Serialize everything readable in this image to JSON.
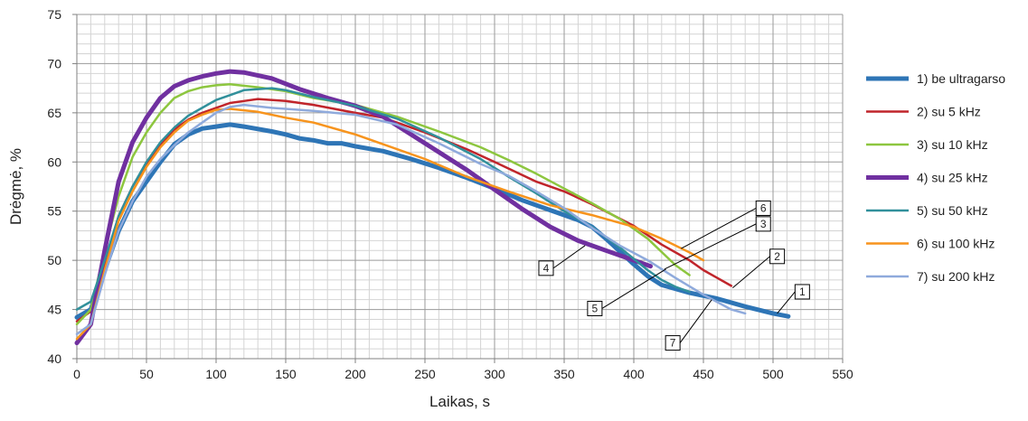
{
  "chart_data": {
    "type": "line",
    "title": "",
    "xlabel": "Laikas, s",
    "ylabel": "Drėgmė, %",
    "xlim": [
      0,
      550
    ],
    "ylim": [
      40,
      75
    ],
    "x_ticks": [
      0,
      50,
      100,
      150,
      200,
      250,
      300,
      350,
      400,
      450,
      500,
      550
    ],
    "y_ticks": [
      40,
      45,
      50,
      55,
      60,
      65,
      70,
      75
    ],
    "x_minor_step": 10,
    "y_minor_step": 1,
    "grid": true,
    "legend_position": "right",
    "series": [
      {
        "name": "1) be ultragarso",
        "color": "#2e75b6",
        "width": 5,
        "tag": "1",
        "points": [
          [
            0,
            44.2
          ],
          [
            10,
            45
          ],
          [
            20,
            49
          ],
          [
            30,
            53
          ],
          [
            40,
            56
          ],
          [
            50,
            58
          ],
          [
            60,
            60
          ],
          [
            70,
            61.8
          ],
          [
            80,
            62.8
          ],
          [
            90,
            63.4
          ],
          [
            100,
            63.6
          ],
          [
            110,
            63.8
          ],
          [
            120,
            63.6
          ],
          [
            140,
            63.1
          ],
          [
            150,
            62.8
          ],
          [
            160,
            62.4
          ],
          [
            170,
            62.2
          ],
          [
            180,
            61.9
          ],
          [
            190,
            61.9
          ],
          [
            200,
            61.6
          ],
          [
            220,
            61.1
          ],
          [
            240,
            60.3
          ],
          [
            260,
            59.4
          ],
          [
            280,
            58.4
          ],
          [
            300,
            57.3
          ],
          [
            320,
            56.1
          ],
          [
            340,
            55.1
          ],
          [
            360,
            54.1
          ],
          [
            370,
            53.4
          ],
          [
            380,
            52.2
          ],
          [
            390,
            50.9
          ],
          [
            400,
            49.6
          ],
          [
            410,
            48.4
          ],
          [
            420,
            47.5
          ],
          [
            440,
            46.7
          ],
          [
            460,
            46.1
          ],
          [
            480,
            45.3
          ],
          [
            500,
            44.6
          ],
          [
            511,
            44.3
          ]
        ]
      },
      {
        "name": "2) su 5 kHz",
        "color": "#c0252b",
        "width": 2.5,
        "tag": "2",
        "points": [
          [
            0,
            43.8
          ],
          [
            10,
            44.8
          ],
          [
            20,
            49.5
          ],
          [
            30,
            54.5
          ],
          [
            40,
            57.5
          ],
          [
            50,
            59.8
          ],
          [
            60,
            61.8
          ],
          [
            70,
            63.3
          ],
          [
            80,
            64.3
          ],
          [
            90,
            65
          ],
          [
            100,
            65.5
          ],
          [
            110,
            66
          ],
          [
            120,
            66.2
          ],
          [
            130,
            66.4
          ],
          [
            150,
            66.2
          ],
          [
            170,
            65.8
          ],
          [
            200,
            65
          ],
          [
            220,
            64.5
          ],
          [
            250,
            63
          ],
          [
            280,
            61.3
          ],
          [
            300,
            60
          ],
          [
            330,
            58
          ],
          [
            350,
            57
          ],
          [
            370,
            55.7
          ],
          [
            400,
            53.5
          ],
          [
            420,
            51.6
          ],
          [
            440,
            50
          ],
          [
            450,
            49
          ],
          [
            460,
            48.2
          ],
          [
            470,
            47.4
          ]
        ]
      },
      {
        "name": "3) su 10 kHz",
        "color": "#8dc63f",
        "width": 2.5,
        "tag": "3",
        "points": [
          [
            0,
            43.5
          ],
          [
            10,
            45
          ],
          [
            20,
            51
          ],
          [
            30,
            56.5
          ],
          [
            40,
            60.5
          ],
          [
            50,
            63
          ],
          [
            60,
            65
          ],
          [
            70,
            66.5
          ],
          [
            80,
            67.2
          ],
          [
            90,
            67.6
          ],
          [
            100,
            67.8
          ],
          [
            110,
            67.9
          ],
          [
            130,
            67.6
          ],
          [
            150,
            67.2
          ],
          [
            170,
            66.5
          ],
          [
            200,
            65.8
          ],
          [
            230,
            64.6
          ],
          [
            260,
            63.1
          ],
          [
            290,
            61.5
          ],
          [
            310,
            60.2
          ],
          [
            330,
            58.8
          ],
          [
            350,
            57.3
          ],
          [
            370,
            55.8
          ],
          [
            390,
            54.2
          ],
          [
            410,
            52.2
          ],
          [
            430,
            49.5
          ],
          [
            440,
            48.5
          ]
        ]
      },
      {
        "name": "4) su 25 kHz",
        "color": "#7030a0",
        "width": 5,
        "tag": "4",
        "points": [
          [
            0,
            41.6
          ],
          [
            10,
            43.5
          ],
          [
            20,
            51
          ],
          [
            30,
            58
          ],
          [
            40,
            62
          ],
          [
            50,
            64.5
          ],
          [
            60,
            66.5
          ],
          [
            70,
            67.7
          ],
          [
            80,
            68.3
          ],
          [
            90,
            68.7
          ],
          [
            100,
            69
          ],
          [
            110,
            69.2
          ],
          [
            120,
            69.1
          ],
          [
            140,
            68.5
          ],
          [
            160,
            67.4
          ],
          [
            180,
            66.5
          ],
          [
            200,
            65.7
          ],
          [
            220,
            64.6
          ],
          [
            240,
            62.8
          ],
          [
            260,
            61
          ],
          [
            280,
            59.2
          ],
          [
            300,
            57.2
          ],
          [
            320,
            55.2
          ],
          [
            340,
            53.4
          ],
          [
            360,
            52
          ],
          [
            380,
            51
          ],
          [
            400,
            50
          ],
          [
            412,
            49.4
          ]
        ]
      },
      {
        "name": "5) su 50 kHz",
        "color": "#31909b",
        "width": 2.5,
        "tag": "5",
        "points": [
          [
            0,
            45
          ],
          [
            10,
            45.8
          ],
          [
            20,
            50
          ],
          [
            30,
            54.5
          ],
          [
            40,
            57.5
          ],
          [
            50,
            60
          ],
          [
            60,
            62
          ],
          [
            70,
            63.5
          ],
          [
            80,
            64.7
          ],
          [
            90,
            65.5
          ],
          [
            100,
            66.3
          ],
          [
            110,
            66.8
          ],
          [
            120,
            67.3
          ],
          [
            140,
            67.5
          ],
          [
            150,
            67.3
          ],
          [
            170,
            66.6
          ],
          [
            200,
            65.7
          ],
          [
            230,
            64.4
          ],
          [
            260,
            62.5
          ],
          [
            290,
            60.3
          ],
          [
            310,
            58.5
          ],
          [
            330,
            56.8
          ],
          [
            350,
            55
          ],
          [
            370,
            53.4
          ],
          [
            390,
            51.3
          ],
          [
            410,
            49
          ],
          [
            420,
            48
          ],
          [
            430,
            47.3
          ],
          [
            440,
            46.8
          ]
        ]
      },
      {
        "name": "6) su 100 kHz",
        "color": "#f7941d",
        "width": 2.5,
        "tag": "6",
        "points": [
          [
            0,
            42
          ],
          [
            10,
            43.5
          ],
          [
            20,
            49
          ],
          [
            30,
            54
          ],
          [
            40,
            57
          ],
          [
            50,
            59.5
          ],
          [
            60,
            61.5
          ],
          [
            70,
            63
          ],
          [
            80,
            64.2
          ],
          [
            90,
            64.8
          ],
          [
            100,
            65.3
          ],
          [
            110,
            65.4
          ],
          [
            130,
            65.1
          ],
          [
            150,
            64.5
          ],
          [
            170,
            64
          ],
          [
            200,
            62.8
          ],
          [
            220,
            61.8
          ],
          [
            250,
            60.3
          ],
          [
            280,
            58.5
          ],
          [
            310,
            57
          ],
          [
            340,
            55.6
          ],
          [
            370,
            54.6
          ],
          [
            400,
            53.4
          ],
          [
            420,
            52.2
          ],
          [
            440,
            50.8
          ],
          [
            450,
            50
          ]
        ]
      },
      {
        "name": "7) su 200 kHz",
        "color": "#8faadc",
        "width": 2.5,
        "tag": "7",
        "points": [
          [
            0,
            42.5
          ],
          [
            10,
            43.5
          ],
          [
            20,
            48.5
          ],
          [
            30,
            53
          ],
          [
            40,
            56
          ],
          [
            50,
            58.5
          ],
          [
            60,
            60.3
          ],
          [
            70,
            61.7
          ],
          [
            80,
            63
          ],
          [
            90,
            64
          ],
          [
            100,
            65
          ],
          [
            110,
            65.6
          ],
          [
            120,
            65.8
          ],
          [
            140,
            65.5
          ],
          [
            170,
            65.2
          ],
          [
            200,
            64.8
          ],
          [
            230,
            63.8
          ],
          [
            260,
            61.9
          ],
          [
            290,
            59.8
          ],
          [
            310,
            58.6
          ],
          [
            330,
            57
          ],
          [
            350,
            55.3
          ],
          [
            370,
            53.3
          ],
          [
            390,
            51.5
          ],
          [
            410,
            50
          ],
          [
            430,
            48.2
          ],
          [
            450,
            46.5
          ],
          [
            470,
            45
          ],
          [
            480,
            44.6
          ]
        ]
      }
    ],
    "annotations": [
      {
        "label": "1",
        "box": [
          521,
          46.8
        ],
        "target": [
          503,
          44.6
        ]
      },
      {
        "label": "2",
        "box": [
          503,
          50.4
        ],
        "target": [
          471,
          47.2
        ]
      },
      {
        "label": "3",
        "box": [
          493,
          53.7
        ],
        "target": [
          422,
          49.1
        ]
      },
      {
        "label": "4",
        "box": [
          337,
          49.2
        ],
        "target": [
          365,
          51.5
        ]
      },
      {
        "label": "5",
        "box": [
          372,
          45.1
        ],
        "target": [
          423,
          49.1
        ]
      },
      {
        "label": "6",
        "box": [
          493,
          55.3
        ],
        "target": [
          434,
          51.2
        ]
      },
      {
        "label": "7",
        "box": [
          428,
          41.6
        ],
        "target": [
          456,
          46
        ]
      }
    ]
  }
}
